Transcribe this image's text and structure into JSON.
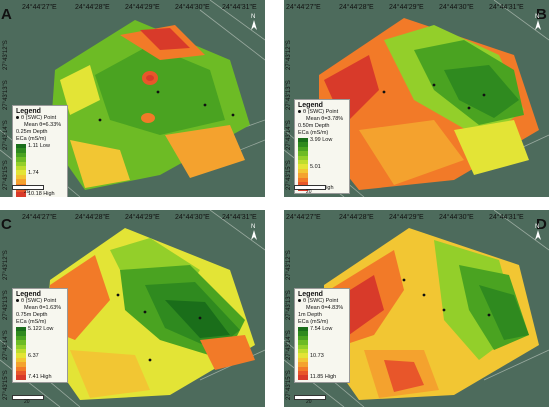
{
  "panels": [
    {
      "letter": "A",
      "lon": [
        "24°44'27\"E",
        "24°44'28\"E",
        "24°44'29\"E",
        "24°44'30\"E",
        "24°44'31\"E"
      ],
      "lat": [
        "27°43'12\"S",
        "27°43'13\"S",
        "27°43'14\"S",
        "27°43'15\"S"
      ],
      "legend": {
        "title": "Legend",
        "point_label": "θ (SWC) Point",
        "mean": "Mean θ=6.33%",
        "depth": "0.25m Depth",
        "units": "ECa (mS/m)",
        "low": "1.11  Low",
        "mid": "1.74",
        "high": "10.18 High"
      },
      "scale": "20"
    },
    {
      "letter": "B",
      "lon": [
        "24°44'27\"E",
        "24°44'28\"E",
        "24°44'29\"E",
        "24°44'30\"E",
        "24°44'31\"E"
      ],
      "lat": [
        "27°43'12\"S",
        "27°43'13\"S",
        "27°43'14\"S",
        "27°43'15\"S"
      ],
      "legend": {
        "title": "Legend",
        "point_label": "θ (SWC) Point",
        "mean": "Mean θ=3.78%",
        "depth": "0.50m Depth",
        "units": "ECa (mS/m)",
        "low": "3.99 Low",
        "mid": "5.01",
        "high": "6.02 High"
      },
      "scale": "20"
    },
    {
      "letter": "C",
      "lon": [
        "24°44'27\"E",
        "24°44'28\"E",
        "24°44'29\"E",
        "24°44'30\"E",
        "24°44'31\"E"
      ],
      "lat": [
        "27°43'12\"S",
        "27°43'13\"S",
        "27°43'14\"S",
        "27°43'15\"S"
      ],
      "legend": {
        "title": "Legend",
        "point_label": "θ (SWC) Point",
        "mean": "Mean θ=1.63%",
        "depth": "0.75m Depth",
        "units": "ECa (mS/m)",
        "low": "5.122 Low",
        "mid": "6.37",
        "high": "7.41 High"
      },
      "scale": "20"
    },
    {
      "letter": "D",
      "lon": [
        "24°44'27\"E",
        "24°44'28\"E",
        "24°44'29\"E",
        "24°44'30\"E",
        "24°44'31\"E"
      ],
      "lat": [
        "27°43'12\"S",
        "27°43'13\"S",
        "27°43'14\"S",
        "27°43'15\"S"
      ],
      "legend": {
        "title": "Legend",
        "point_label": "θ (SWC) Point",
        "mean": "Mean θ=4.83%",
        "depth": "1m Depth",
        "units": "ECa (mS/m)",
        "low": "7.54 Low",
        "mid": "10.73",
        "high": "11.85 High"
      },
      "scale": "20"
    }
  ],
  "colors": {
    "ramp": [
      "#1a6e1a",
      "#2f8a1f",
      "#4aa321",
      "#6dbb25",
      "#93cf2a",
      "#bedd2e",
      "#e3e436",
      "#f2c633",
      "#f4a22e",
      "#f27a28",
      "#e8562a",
      "#d83a2a"
    ]
  }
}
